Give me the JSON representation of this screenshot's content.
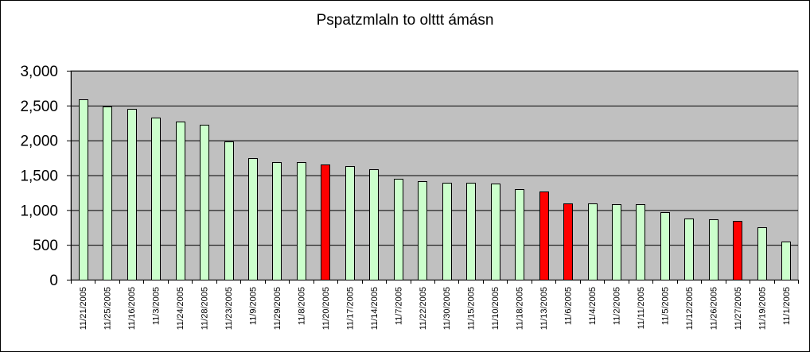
{
  "chart_data": {
    "type": "bar",
    "title": "Pspatzmlaln to olttt ámásn",
    "xlabel": "",
    "ylabel": "",
    "ylim": [
      0,
      3000
    ],
    "yticks": [
      "0",
      "500",
      "1,000",
      "1,500",
      "2,000",
      "2,500",
      "3,000"
    ],
    "ytick_values": [
      0,
      500,
      1000,
      1500,
      2000,
      2500,
      3000
    ],
    "grid": true,
    "legend": "none",
    "categories": [
      "11/21/2005",
      "11/25/2005",
      "11/16/2005",
      "11/3/2005",
      "11/24/2005",
      "11/28/2005",
      "11/23/2005",
      "11/9/2005",
      "11/29/2005",
      "11/8/2005",
      "11/20/2005",
      "11/17/2005",
      "11/14/2005",
      "11/7/2005",
      "11/22/2005",
      "11/30/2005",
      "11/15/2005",
      "11/10/2005",
      "11/18/2005",
      "11/13/2005",
      "11/6/2005",
      "11/4/2005",
      "11/2/2005",
      "11/11/2005",
      "11/5/2005",
      "11/12/2005",
      "11/26/2005",
      "11/27/2005",
      "11/19/2005",
      "11/1/2005"
    ],
    "values": [
      2590,
      2490,
      2450,
      2330,
      2270,
      2220,
      1990,
      1740,
      1690,
      1690,
      1650,
      1630,
      1580,
      1450,
      1410,
      1390,
      1390,
      1380,
      1300,
      1270,
      1090,
      1090,
      1080,
      1080,
      970,
      880,
      870,
      840,
      750,
      550
    ],
    "highlighted": [
      false,
      false,
      false,
      false,
      false,
      false,
      false,
      false,
      false,
      false,
      true,
      false,
      false,
      false,
      false,
      false,
      false,
      false,
      false,
      true,
      true,
      false,
      false,
      false,
      false,
      false,
      false,
      true,
      false,
      false
    ],
    "colors": {
      "bar": "#ccffcc",
      "highlight": "#ff0000",
      "plot_bg": "#c0c0c0",
      "gridline": "#000000",
      "outline": "#000000"
    }
  }
}
